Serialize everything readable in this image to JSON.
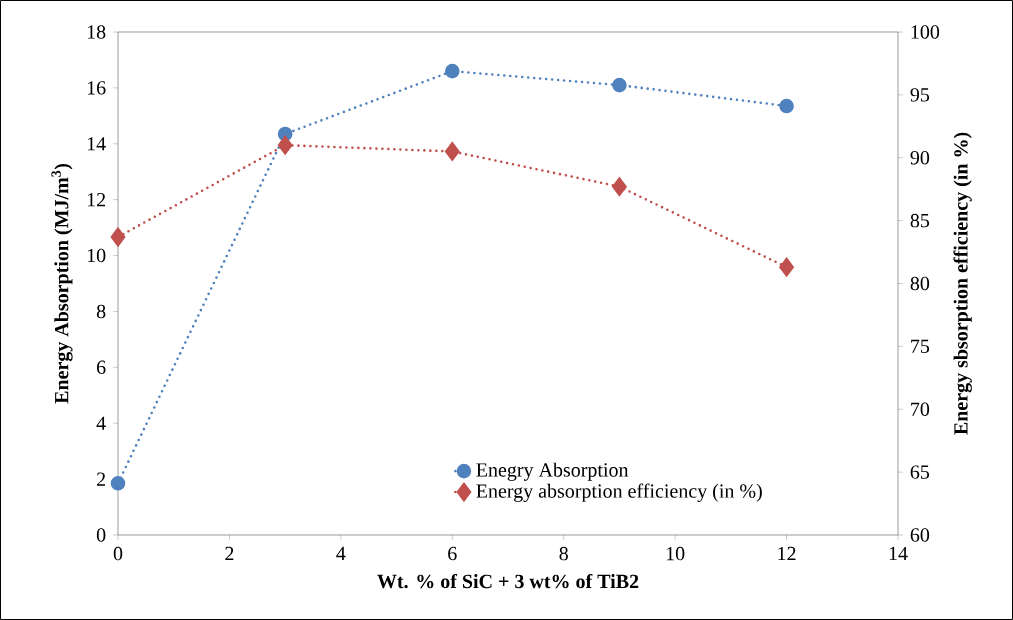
{
  "chart_data": {
    "type": "line",
    "x": [
      0,
      3,
      6,
      9,
      12
    ],
    "xlabel": "Wt. % of SiC + 3 wt% of TiB2",
    "ylabel": "Energy Absorption (MJ/m$^{3}$)",
    "y2label": "Energy sbsorption efficiency (in %)",
    "xlim": [
      0,
      14
    ],
    "xticks": [
      0,
      2,
      4,
      6,
      8,
      10,
      12,
      14
    ],
    "ylim": [
      0,
      18
    ],
    "yticks": [
      0,
      2,
      4,
      6,
      8,
      10,
      12,
      14,
      16,
      18
    ],
    "y2lim": [
      60,
      100
    ],
    "y2ticks": [
      60,
      65,
      70,
      75,
      80,
      85,
      90,
      95,
      100
    ],
    "grid": false,
    "legend": "bottom",
    "line_style": "dotted",
    "series": [
      {
        "name": "Enegry Absorption",
        "color": "#4f81bd",
        "marker": "circle",
        "values": [
          1.85,
          14.35,
          16.6,
          16.1,
          15.35
        ]
      },
      {
        "name": "Energy absorption efficiency (in %)",
        "color": "#c0504d",
        "marker": "diamond",
        "axis": "y2",
        "values": [
          83.7,
          91.0,
          90.5,
          87.7,
          81.3
        ]
      }
    ]
  }
}
